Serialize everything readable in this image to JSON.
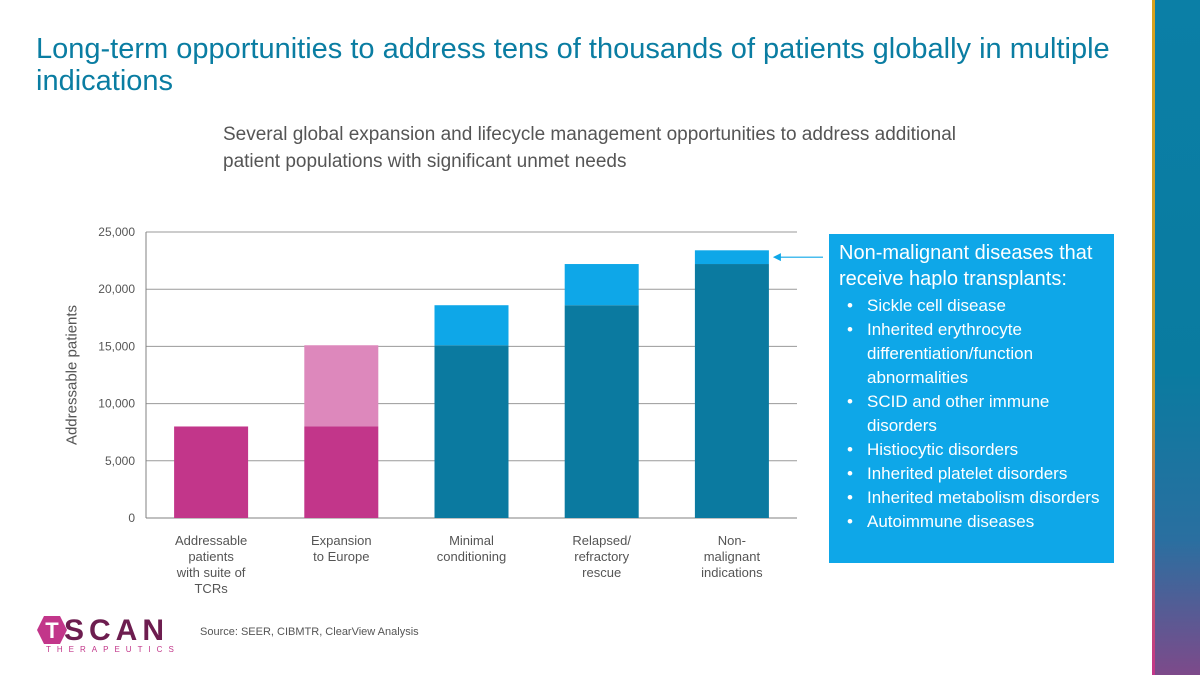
{
  "title": "Long-term opportunities to address tens of thousands of patients globally in multiple indications",
  "subtitle": "Several global expansion and lifecycle management opportunities to address additional patient populations with significant unmet needs",
  "callout": {
    "title": "Non-malignant diseases that receive haplo transplants:",
    "items": [
      "Sickle cell disease",
      "Inherited erythrocyte differentiation/function abnormalities",
      "SCID and other immune disorders",
      "Histiocytic disorders",
      "Inherited platelet disorders",
      "Inherited metabolism disorders",
      "Autoimmune diseases"
    ]
  },
  "source": "Source: SEER, CIBMTR, ClearView Analysis",
  "logo": {
    "letter": "T",
    "word": "SCAN",
    "sub": "THERAPEUTICS"
  },
  "colors": {
    "magenta": "#c2368a",
    "light_magenta": "#dd88bc",
    "teal": "#0b7aa0",
    "light_blue": "#0ea7e8",
    "title_teal": "#0a7da2"
  },
  "chart_data": {
    "type": "bar",
    "stacked": true,
    "ylabel": "Addressable patients",
    "ylim": [
      0,
      25000
    ],
    "yticks": [
      "0",
      "5,000",
      "10,000",
      "15,000",
      "20,000",
      "25,000"
    ],
    "grid": true,
    "categories": [
      [
        "Addressable",
        "patients",
        "with suite of",
        "TCRs"
      ],
      [
        "Expansion",
        "to Europe"
      ],
      [
        "Minimal",
        "conditioning"
      ],
      [
        "Relapsed/",
        "refractory",
        "rescue"
      ],
      [
        "Non-",
        "malignant",
        "indications"
      ]
    ],
    "bars": [
      [
        {
          "value": 8000,
          "color": "#c2368a"
        }
      ],
      [
        {
          "value": 8000,
          "color": "#c2368a"
        },
        {
          "value": 7100,
          "color": "#dd88bc"
        }
      ],
      [
        {
          "value": 15100,
          "color": "#0b7aa0"
        },
        {
          "value": 3500,
          "color": "#0ea7e8"
        }
      ],
      [
        {
          "value": 18600,
          "color": "#0b7aa0"
        },
        {
          "value": 3600,
          "color": "#0ea7e8"
        }
      ],
      [
        {
          "value": 22200,
          "color": "#0b7aa0"
        },
        {
          "value": 1200,
          "color": "#0ea7e8"
        }
      ]
    ]
  }
}
